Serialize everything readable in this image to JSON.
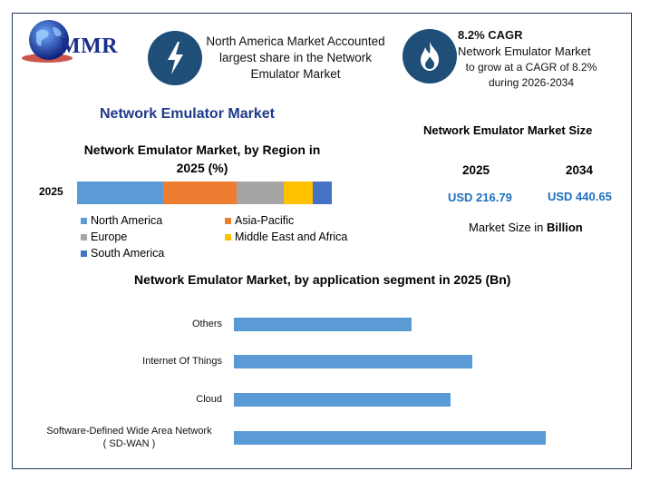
{
  "brand": {
    "logo_text": "MMR"
  },
  "header": {
    "block1": {
      "text": "North America Market Accounted largest share in the Network Emulator Market",
      "icon": "lightning-icon"
    },
    "block2": {
      "cagr": "8.2% CAGR",
      "line1": "Network Emulator Market",
      "line2": "to grow at a CAGR of 8.2%",
      "line3": "during 2026-2034",
      "icon": "flame-icon"
    }
  },
  "main_title": "Network Emulator Market",
  "size_panel": {
    "title": "Network Emulator Market Size",
    "year1": "2025",
    "year2": "2034",
    "value1": "USD 216.79",
    "value2": "USD 440.65",
    "unit_prefix": "Market Size in",
    "unit_bold": "Billion"
  },
  "chart_data": [
    {
      "type": "bar",
      "orientation": "horizontal-stacked",
      "title": "Network Emulator Market, by Region in 2025 (%)",
      "categories": [
        "2025"
      ],
      "series": [
        {
          "name": "North America",
          "values": [
            34
          ],
          "color": "#5b9bd5"
        },
        {
          "name": "Asia-Pacific",
          "values": [
            29
          ],
          "color": "#ed7d31"
        },
        {
          "name": "Europe",
          "values": [
            18.5
          ],
          "color": "#a5a5a5"
        },
        {
          "name": "Middle East and Africa",
          "values": [
            11.5
          ],
          "color": "#ffc000"
        },
        {
          "name": "South America",
          "values": [
            7.5
          ],
          "color": "#4472c4"
        }
      ],
      "legend": "bottom"
    },
    {
      "type": "bar",
      "orientation": "horizontal",
      "title": "Network Emulator Market, by application segment in 2025 (Bn)",
      "categories": [
        "Others",
        "Internet Of Things",
        "Cloud",
        "Software-Defined Wide Area Network ( SD-WAN )"
      ],
      "category_lines": [
        [
          "Others"
        ],
        [
          "Internet Of Things"
        ],
        [
          "Cloud"
        ],
        [
          "Software-Defined Wide Area Network",
          "( SD-WAN )"
        ]
      ],
      "values": [
        41,
        55,
        50,
        72
      ],
      "xlim": [
        0,
        80
      ],
      "color": "#5b9bd5"
    }
  ]
}
